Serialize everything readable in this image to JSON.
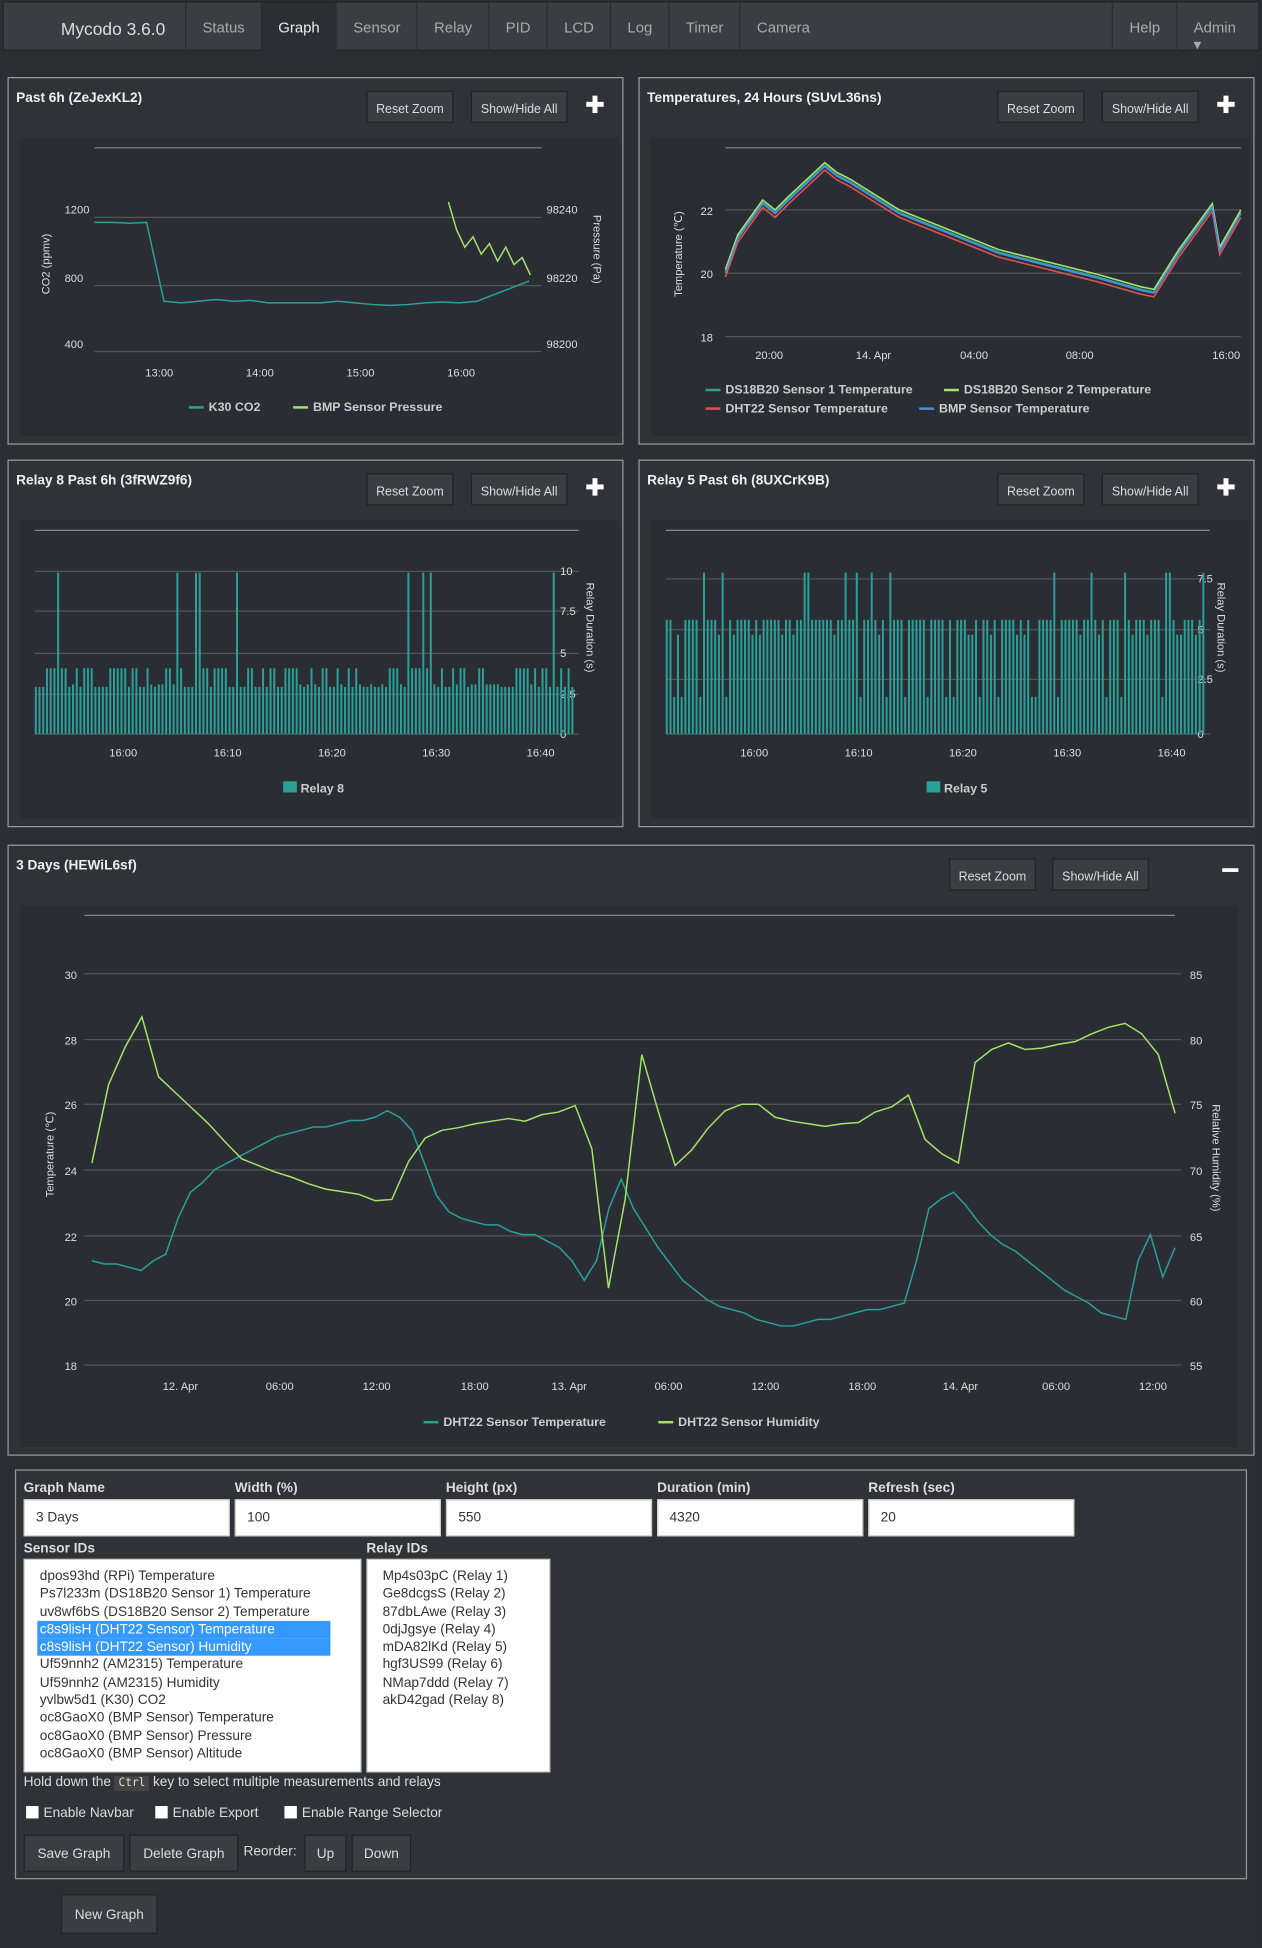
{
  "nav": {
    "brand": "Mycodo 3.6.0",
    "items": [
      "Status",
      "Graph",
      "Sensor",
      "Relay",
      "PID",
      "LCD",
      "Log",
      "Timer",
      "Camera"
    ],
    "help": "Help",
    "admin": "Admin"
  },
  "btn": {
    "reset": "Reset Zoom",
    "showhide": "Show/Hide All"
  },
  "graphs": [
    {
      "title": "Past 6h (ZeJexKL2)",
      "chart_data": {
        "type": "line",
        "ylabel": "CO2 (ppmv)",
        "y2label": "Pressure (Pa)",
        "yticks": [
          "1200",
          "800",
          "400"
        ],
        "y2ticks": [
          "98240",
          "98220",
          "98200"
        ],
        "xticks": [
          "13:00",
          "14:00",
          "15:00",
          "16:00"
        ],
        "series": [
          {
            "name": "K30 CO2",
            "color": "#2aa198",
            "values": [
              1170,
              1170,
              1165,
              1170,
              700,
              690,
              700,
              710,
              700,
              705,
              690,
              690,
              690,
              690,
              700,
              690,
              680,
              675,
              680,
              690,
              695,
              690,
              700,
              740,
              780,
              820
            ]
          },
          {
            "name": "BMP Sensor Pressure",
            "color": "#a4e36b",
            "values": [
              98243,
              98235,
              98230,
              98233,
              98228,
              98231,
              98226,
              98230,
              98225,
              98227,
              98222
            ]
          }
        ]
      }
    },
    {
      "title": "Temperatures, 24 Hours (SUvL36ns)",
      "chart_data": {
        "type": "line",
        "ylabel": "Temperature (℃)",
        "yticks": [
          "22",
          "20",
          "18"
        ],
        "xticks": [
          "20:00",
          "14. Apr",
          "04:00",
          "08:00",
          "16:00"
        ],
        "series": [
          {
            "name": "DS18B20 Sensor 1 Temperature",
            "color": "#2aa198"
          },
          {
            "name": "DS18B20 Sensor 2 Temperature",
            "color": "#a4e36b"
          },
          {
            "name": "DHT22 Sensor Temperature",
            "color": "#e05050"
          },
          {
            "name": "BMP Sensor Temperature",
            "color": "#4a8fd8"
          }
        ]
      }
    },
    {
      "title": "Relay 8 Past 6h (3fRWZ9f6)",
      "chart_data": {
        "type": "bar",
        "ylabel": "Relay Duration (s)",
        "y2ticks": [
          "10",
          "7.5",
          "5",
          "2.5",
          "0"
        ],
        "xticks": [
          "16:00",
          "16:10",
          "16:20",
          "16:30",
          "16:40"
        ],
        "series": [
          {
            "name": "Relay 8",
            "color": "#2aa198"
          }
        ]
      }
    },
    {
      "title": "Relay 5 Past 6h (8UXCrK9B)",
      "chart_data": {
        "type": "bar",
        "ylabel": "Relay Duration (s)",
        "y2ticks": [
          "7.5",
          "5",
          "2.5",
          "0"
        ],
        "xticks": [
          "16:00",
          "16:10",
          "16:20",
          "16:30",
          "16:40"
        ],
        "series": [
          {
            "name": "Relay 5",
            "color": "#2aa198"
          }
        ]
      }
    },
    {
      "title": "3 Days (HEWiL6sf)",
      "chart_data": {
        "type": "line",
        "ylabel": "Temperature (℃)",
        "y2label": "Relative Humidity (%)",
        "yticks": [
          "30",
          "28",
          "26",
          "24",
          "22",
          "20",
          "18"
        ],
        "y2ticks": [
          "85",
          "80",
          "75",
          "70",
          "65",
          "60",
          "55"
        ],
        "xticks": [
          "12. Apr",
          "06:00",
          "12:00",
          "18:00",
          "13. Apr",
          "06:00",
          "12:00",
          "18:00",
          "14. Apr",
          "06:00",
          "12:00"
        ],
        "series": [
          {
            "name": "DHT22 Sensor Temperature",
            "color": "#2aa198",
            "values": [
              21.2,
              21.1,
              21.1,
              21.0,
              20.9,
              21.2,
              21.4,
              22.5,
              23.3,
              23.6,
              24.0,
              24.2,
              24.4,
              24.6,
              24.8,
              25.0,
              25.1,
              25.2,
              25.3,
              25.3,
              25.4,
              25.5,
              25.5,
              25.6,
              25.8,
              25.6,
              25.2,
              24.2,
              23.2,
              22.7,
              22.5,
              22.4,
              22.3,
              22.3,
              22.1,
              22.0,
              22.0,
              21.8,
              21.6,
              21.2,
              20.6,
              21.2,
              22.8,
              23.7,
              22.8,
              22.2,
              21.6,
              21.1,
              20.6,
              20.3,
              20.0,
              19.8,
              19.7,
              19.6,
              19.4,
              19.3,
              19.2,
              19.2,
              19.3,
              19.4,
              19.4,
              19.5,
              19.6,
              19.7,
              19.7,
              19.8,
              19.9,
              21.2,
              22.8,
              23.1,
              23.3,
              22.9,
              22.4,
              22.0,
              21.7,
              21.5,
              21.2,
              20.9,
              20.6,
              20.3,
              20.1,
              19.9,
              19.6,
              19.5,
              19.4,
              21.2,
              22.0,
              20.7,
              21.6
            ]
          },
          {
            "name": "DHT22 Sensor Humidity",
            "color": "#a4e36b",
            "values": [
              70.5,
              76.5,
              79.4,
              81.7,
              77.1,
              75.9,
              74.7,
              73.5,
              72.1,
              70.8,
              70.3,
              69.8,
              69.4,
              68.9,
              68.5,
              68.3,
              68.1,
              67.6,
              67.7,
              70.6,
              72.4,
              73.0,
              73.2,
              73.5,
              73.7,
              73.9,
              73.7,
              74.2,
              74.4,
              74.9,
              71.6,
              60.9,
              67.7,
              78.8,
              74.4,
              70.3,
              71.5,
              73.2,
              74.5,
              75.0,
              75.0,
              74.0,
              73.7,
              73.5,
              73.3,
              73.5,
              73.6,
              74.4,
              74.8,
              75.7,
              72.3,
              71.2,
              70.5,
              78.2,
              79.2,
              79.7,
              79.2,
              79.3,
              79.6,
              79.8,
              80.4,
              80.9,
              81.2,
              80.4,
              78.8,
              74.3
            ]
          }
        ]
      }
    }
  ],
  "form": {
    "graph_name_label": "Graph Name",
    "graph_name": "3 Days",
    "width_label": "Width (%)",
    "width": "100",
    "height_label": "Height (px)",
    "height": "550",
    "duration_label": "Duration (min)",
    "duration": "4320",
    "refresh_label": "Refresh (sec)",
    "refresh": "20",
    "sensor_ids_label": "Sensor IDs",
    "relay_ids_label": "Relay IDs",
    "sensor_ids": [
      "dpos93hd (RPi) Temperature",
      "Ps7l233m (DS18B20 Sensor 1) Temperature",
      "uv8wf6bS (DS18B20 Sensor 2) Temperature",
      "c8s9lisH (DHT22 Sensor) Temperature",
      "c8s9lisH (DHT22 Sensor) Humidity",
      "Uf59nnh2 (AM2315) Temperature",
      "Uf59nnh2 (AM2315) Humidity",
      "yvlbw5d1 (K30) CO2",
      "oc8GaoX0 (BMP Sensor) Temperature",
      "oc8GaoX0 (BMP Sensor) Pressure",
      "oc8GaoX0 (BMP Sensor) Altitude"
    ],
    "relay_ids": [
      "Mp4s03pC (Relay 1)",
      "Ge8dcgsS (Relay 2)",
      "87dbLAwe (Relay 3)",
      "0djJgsye (Relay 4)",
      "mDA82lKd (Relay 5)",
      "hgf3US99 (Relay 6)",
      "NMap7ddd (Relay 7)",
      "akD42gad (Relay 8)"
    ],
    "hint1": "Hold down the",
    "hint_key": "Ctrl",
    "hint2": "key to select multiple measurements and relays",
    "enable_navbar": "Enable Navbar",
    "enable_export": "Enable Export",
    "enable_range": "Enable Range Selector",
    "save": "Save Graph",
    "delete": "Delete Graph",
    "reorder": "Reorder:",
    "up": "Up",
    "down": "Down",
    "new_graph": "New Graph"
  }
}
